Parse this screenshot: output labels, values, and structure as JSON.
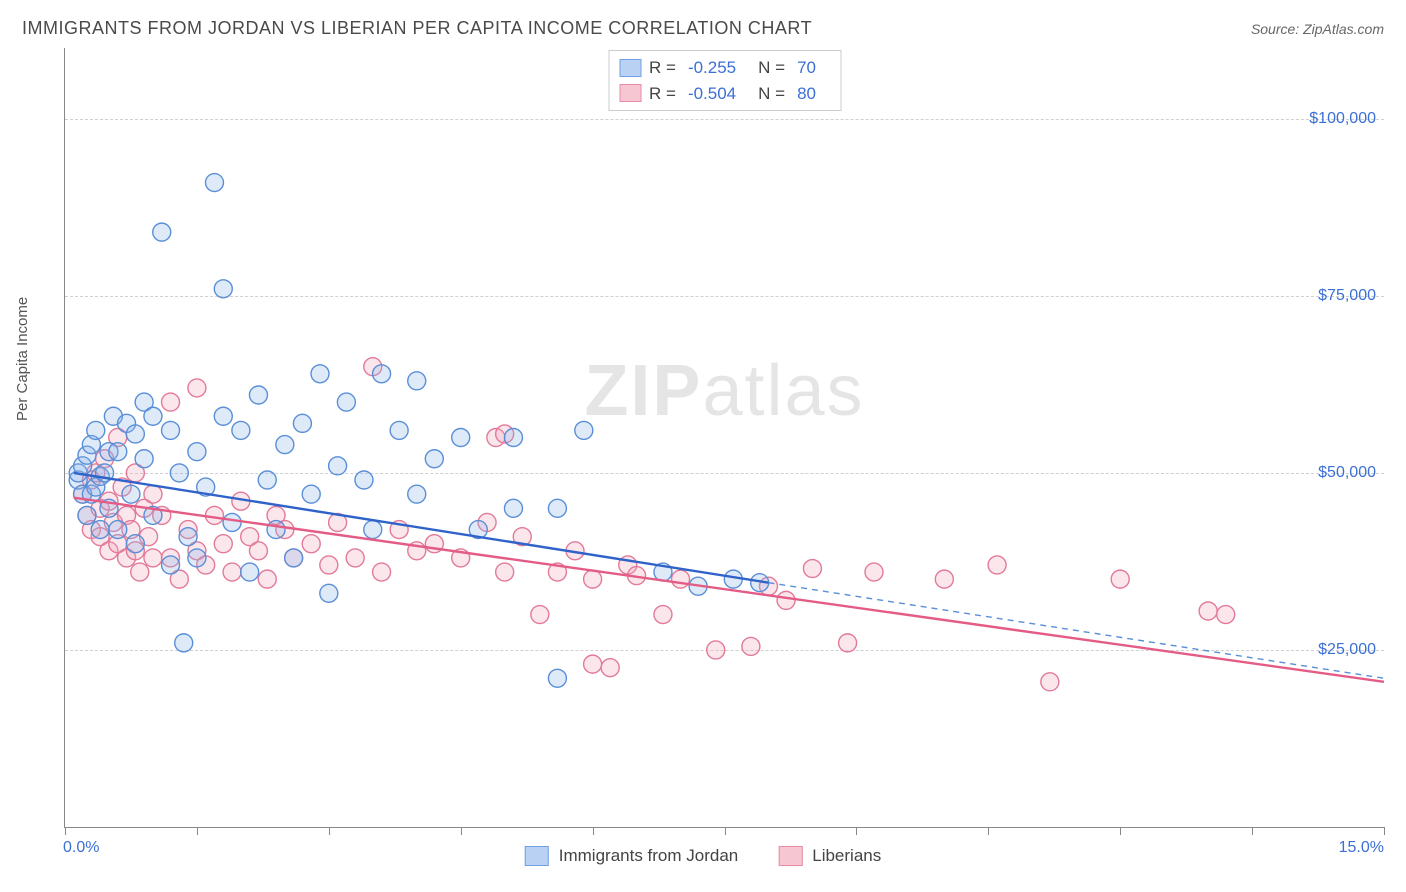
{
  "title": "IMMIGRANTS FROM JORDAN VS LIBERIAN PER CAPITA INCOME CORRELATION CHART",
  "source_label": "Source: ",
  "source_name": "ZipAtlas.com",
  "y_axis_label": "Per Capita Income",
  "watermark_a": "ZIP",
  "watermark_b": "atlas",
  "chart": {
    "type": "scatter",
    "x_domain": [
      0,
      15
    ],
    "y_domain": [
      0,
      110000
    ],
    "x_min_label": "0.0%",
    "x_max_label": "15.0%",
    "x_tick_step": 1.5,
    "y_gridlines": [
      25000,
      50000,
      75000,
      100000
    ],
    "y_tick_labels": [
      "$25,000",
      "$50,000",
      "$75,000",
      "$100,000"
    ],
    "marker_radius": 9,
    "marker_stroke_width": 1.4,
    "marker_fill_opacity": 0.28,
    "trend_line_width": 2.4,
    "background_color": "#ffffff",
    "grid_color": "#d0d0d0",
    "axis_color": "#888888",
    "label_color": "#3b6fd6",
    "series": [
      {
        "id": "jordan",
        "label": "Immigrants from Jordan",
        "swatch_fill": "#b9d1f2",
        "swatch_stroke": "#6fa0e6",
        "marker_fill": "#8db5ea",
        "marker_stroke": "#5a8fd8",
        "line_color": "#2f63c9",
        "dash_color": "#5a8fd8",
        "R_label": "R = ",
        "R": "-0.255",
        "N_label": "N = ",
        "N": "70",
        "trend": {
          "x1": 0.1,
          "y1": 50000,
          "x2_solid": 8.0,
          "y2_solid": 34500,
          "x2_dash": 15.0,
          "y2_dash": 21000
        },
        "points": [
          [
            0.15,
            49000
          ],
          [
            0.15,
            50000
          ],
          [
            0.2,
            51000
          ],
          [
            0.2,
            47000
          ],
          [
            0.25,
            52500
          ],
          [
            0.25,
            44000
          ],
          [
            0.3,
            54000
          ],
          [
            0.3,
            47000
          ],
          [
            0.35,
            48000
          ],
          [
            0.35,
            56000
          ],
          [
            0.4,
            49500
          ],
          [
            0.4,
            42000
          ],
          [
            0.45,
            50000
          ],
          [
            0.5,
            53000
          ],
          [
            0.5,
            45000
          ],
          [
            0.55,
            58000
          ],
          [
            0.6,
            53000
          ],
          [
            0.6,
            42000
          ],
          [
            0.7,
            57000
          ],
          [
            0.75,
            47000
          ],
          [
            0.8,
            55500
          ],
          [
            0.8,
            40000
          ],
          [
            0.9,
            52000
          ],
          [
            0.9,
            60000
          ],
          [
            1.0,
            58000
          ],
          [
            1.0,
            44000
          ],
          [
            1.1,
            84000
          ],
          [
            1.2,
            56000
          ],
          [
            1.2,
            37000
          ],
          [
            1.3,
            50000
          ],
          [
            1.35,
            26000
          ],
          [
            1.4,
            41000
          ],
          [
            1.5,
            53000
          ],
          [
            1.5,
            38000
          ],
          [
            1.6,
            48000
          ],
          [
            1.7,
            91000
          ],
          [
            1.8,
            76000
          ],
          [
            1.8,
            58000
          ],
          [
            1.9,
            43000
          ],
          [
            2.0,
            56000
          ],
          [
            2.1,
            36000
          ],
          [
            2.2,
            61000
          ],
          [
            2.3,
            49000
          ],
          [
            2.4,
            42000
          ],
          [
            2.5,
            54000
          ],
          [
            2.6,
            38000
          ],
          [
            2.7,
            57000
          ],
          [
            2.8,
            47000
          ],
          [
            2.9,
            64000
          ],
          [
            3.0,
            33000
          ],
          [
            3.1,
            51000
          ],
          [
            3.2,
            60000
          ],
          [
            3.4,
            49000
          ],
          [
            3.5,
            42000
          ],
          [
            3.6,
            64000
          ],
          [
            3.8,
            56000
          ],
          [
            4.0,
            47000
          ],
          [
            4.0,
            63000
          ],
          [
            4.2,
            52000
          ],
          [
            4.5,
            55000
          ],
          [
            4.7,
            42000
          ],
          [
            5.1,
            55000
          ],
          [
            5.1,
            45000
          ],
          [
            5.6,
            21000
          ],
          [
            5.6,
            45000
          ],
          [
            5.9,
            56000
          ],
          [
            6.8,
            36000
          ],
          [
            7.2,
            34000
          ],
          [
            7.6,
            35000
          ],
          [
            7.9,
            34500
          ]
        ]
      },
      {
        "id": "liberians",
        "label": "Liberians",
        "swatch_fill": "#f6c6d3",
        "swatch_stroke": "#e88aa5",
        "marker_fill": "#f0a7bb",
        "marker_stroke": "#e27a98",
        "line_color": "#e45c85",
        "R_label": "R = ",
        "R": "-0.504",
        "N_label": "N = ",
        "N": "80",
        "trend": {
          "x1": 0.1,
          "y1": 46500,
          "x2_solid": 15.0,
          "y2_solid": 20500
        },
        "points": [
          [
            0.2,
            47000
          ],
          [
            0.25,
            44000
          ],
          [
            0.3,
            49000
          ],
          [
            0.3,
            42000
          ],
          [
            0.35,
            50000
          ],
          [
            0.4,
            45000
          ],
          [
            0.4,
            41000
          ],
          [
            0.45,
            52000
          ],
          [
            0.5,
            39000
          ],
          [
            0.5,
            46000
          ],
          [
            0.55,
            43000
          ],
          [
            0.6,
            40000
          ],
          [
            0.6,
            55000
          ],
          [
            0.65,
            48000
          ],
          [
            0.7,
            38000
          ],
          [
            0.7,
            44000
          ],
          [
            0.75,
            42000
          ],
          [
            0.8,
            39000
          ],
          [
            0.8,
            50000
          ],
          [
            0.85,
            36000
          ],
          [
            0.9,
            45000
          ],
          [
            0.95,
            41000
          ],
          [
            1.0,
            38000
          ],
          [
            1.0,
            47000
          ],
          [
            1.1,
            44000
          ],
          [
            1.2,
            60000
          ],
          [
            1.2,
            38000
          ],
          [
            1.3,
            35000
          ],
          [
            1.4,
            42000
          ],
          [
            1.5,
            62000
          ],
          [
            1.5,
            39000
          ],
          [
            1.6,
            37000
          ],
          [
            1.7,
            44000
          ],
          [
            1.8,
            40000
          ],
          [
            1.9,
            36000
          ],
          [
            2.0,
            46000
          ],
          [
            2.1,
            41000
          ],
          [
            2.2,
            39000
          ],
          [
            2.3,
            35000
          ],
          [
            2.4,
            44000
          ],
          [
            2.5,
            42000
          ],
          [
            2.6,
            38000
          ],
          [
            2.8,
            40000
          ],
          [
            3.0,
            37000
          ],
          [
            3.1,
            43000
          ],
          [
            3.3,
            38000
          ],
          [
            3.5,
            65000
          ],
          [
            3.6,
            36000
          ],
          [
            3.8,
            42000
          ],
          [
            4.0,
            39000
          ],
          [
            4.2,
            40000
          ],
          [
            4.5,
            38000
          ],
          [
            4.8,
            43000
          ],
          [
            4.9,
            55000
          ],
          [
            5.0,
            36000
          ],
          [
            5.0,
            55500
          ],
          [
            5.2,
            41000
          ],
          [
            5.4,
            30000
          ],
          [
            5.6,
            36000
          ],
          [
            5.8,
            39000
          ],
          [
            6.0,
            35000
          ],
          [
            6.0,
            23000
          ],
          [
            6.2,
            22500
          ],
          [
            6.4,
            37000
          ],
          [
            6.5,
            35500
          ],
          [
            6.8,
            30000
          ],
          [
            7.0,
            35000
          ],
          [
            7.4,
            25000
          ],
          [
            7.8,
            25500
          ],
          [
            8.0,
            34000
          ],
          [
            8.2,
            32000
          ],
          [
            8.5,
            36500
          ],
          [
            8.9,
            26000
          ],
          [
            9.2,
            36000
          ],
          [
            10.0,
            35000
          ],
          [
            10.6,
            37000
          ],
          [
            11.2,
            20500
          ],
          [
            12.0,
            35000
          ],
          [
            13.0,
            30500
          ],
          [
            13.2,
            30000
          ]
        ]
      }
    ]
  }
}
